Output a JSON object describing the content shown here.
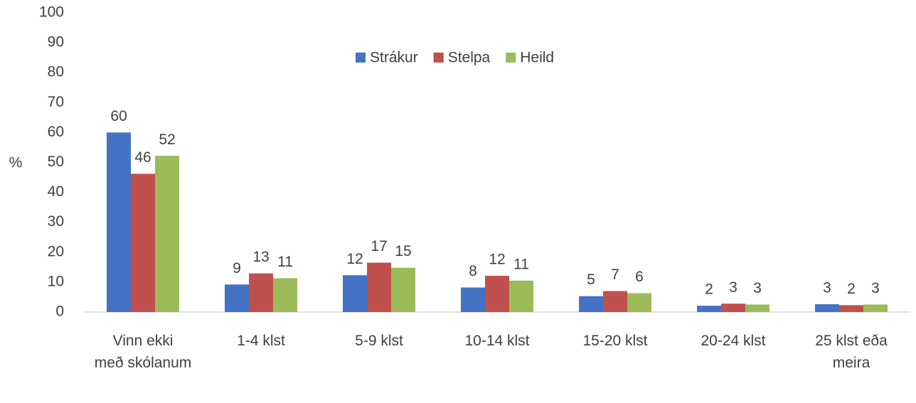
{
  "chart_data": {
    "type": "bar",
    "ylabel": "%",
    "categories": [
      "Vinn ekki með skólanum",
      "1-4 klst",
      "5-9 klst",
      "10-14 klst",
      "15-20 klst",
      "20-24 klst",
      "25 klst eða meira"
    ],
    "series": [
      {
        "name": "Strákur",
        "color": "#4472c4",
        "values": [
          60,
          9.2,
          12.3,
          8.2,
          5.3,
          2.1,
          2.6
        ],
        "value_labels": [
          "60",
          "9",
          "12",
          "8",
          "5",
          "2",
          "3"
        ]
      },
      {
        "name": "Stelpa",
        "color": "#c0504d",
        "values": [
          46.2,
          12.9,
          16.5,
          12.1,
          7.0,
          2.8,
          2.3
        ],
        "value_labels": [
          "46",
          "13",
          "17",
          "12",
          "7",
          "3",
          "2"
        ]
      },
      {
        "name": "Heild",
        "color": "#9bbb59",
        "values": [
          52.2,
          11.3,
          14.8,
          10.5,
          6.3,
          2.5,
          2.5
        ],
        "value_labels": [
          "52",
          "11",
          "15",
          "11",
          "6",
          "3",
          "3"
        ]
      }
    ],
    "ylim": [
      0,
      100
    ],
    "yticks": [
      0,
      10,
      20,
      30,
      40,
      50,
      60,
      70,
      80,
      90,
      100
    ],
    "grid": false,
    "legend": "top"
  }
}
